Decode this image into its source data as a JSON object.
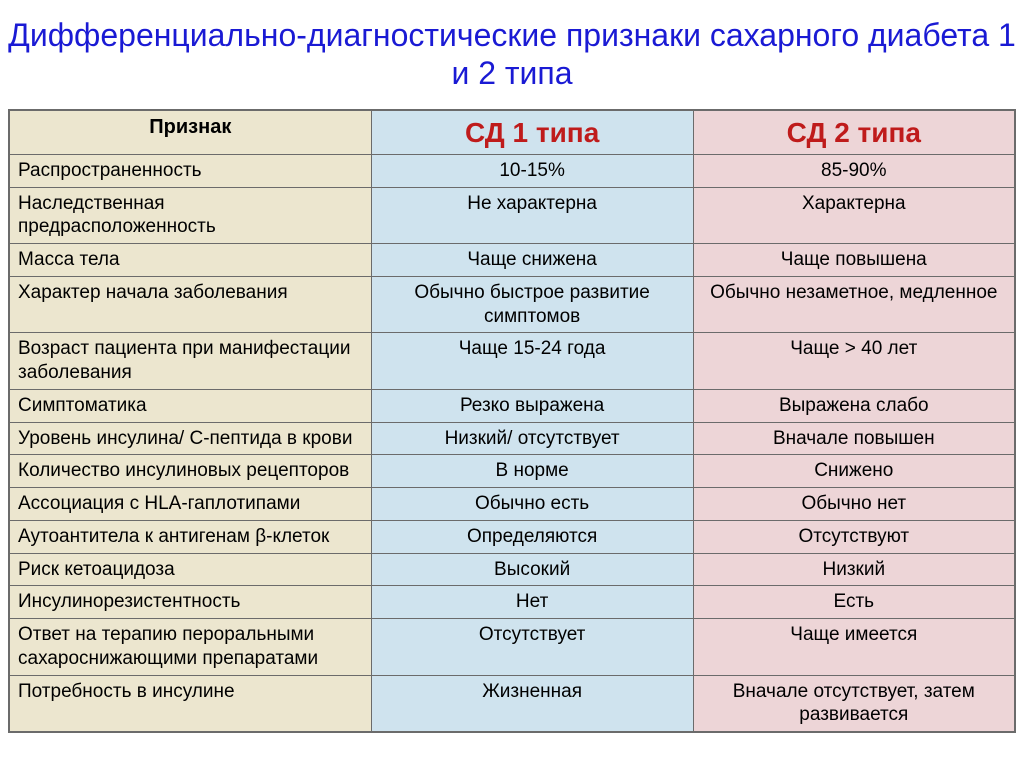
{
  "title": "Дифференциально-диагностические признаки сахарного диабета 1 и 2 типа",
  "title_color": "#1a1ad4",
  "table": {
    "type": "table",
    "border_color": "#6b6b6b",
    "columns": [
      "Признак",
      "СД 1 типа",
      "СД 2 типа"
    ],
    "header_bg": [
      "#ece6cf",
      "#cfe3ee",
      "#edd5d7"
    ],
    "header_color": [
      "#000000",
      "#bf1b1b",
      "#bf1b1b"
    ],
    "col_bg": [
      "#ece6cf",
      "#cfe3ee",
      "#edd5d7"
    ],
    "col_widths_pct": [
      36,
      32,
      32
    ],
    "header_fontsize_pt": [
      15,
      21,
      21
    ],
    "body_fontsize_pt": 14,
    "rows": [
      [
        "Распространенность",
        "10-15%",
        "85-90%"
      ],
      [
        "Наследственная предрасположенность",
        "Не характерна",
        "Характерна"
      ],
      [
        "Масса тела",
        "Чаще снижена",
        "Чаще повышена"
      ],
      [
        "Характер начала заболевания",
        "Обычно быстрое развитие симптомов",
        "Обычно незаметное, медленное"
      ],
      [
        "Возраст пациента при манифестации заболевания",
        "Чаще 15-24 года",
        "Чаще > 40 лет"
      ],
      [
        "Симптоматика",
        "Резко выражена",
        "Выражена слабо"
      ],
      [
        "Уровень инсулина/ С-пептида в крови",
        "Низкий/ отсутствует",
        "Вначале повышен"
      ],
      [
        "Количество инсулиновых рецепторов",
        "В норме",
        "Снижено"
      ],
      [
        "Ассоциация с HLA-гаплотипами",
        "Обычно есть",
        "Обычно нет"
      ],
      [
        "Аутоантитела к антигенам β-клеток",
        "Определяются",
        "Отсутствуют"
      ],
      [
        "Риск кетоацидоза",
        "Высокий",
        "Низкий"
      ],
      [
        "Инсулинорезистентность",
        "Нет",
        "Есть"
      ],
      [
        "Ответ на терапию пероральными сахароснижающими препаратами",
        "Отсутствует",
        "Чаще имеется"
      ],
      [
        "Потребность в инсулине",
        "Жизненная",
        "Вначале отсутствует, затем развивается"
      ]
    ]
  }
}
